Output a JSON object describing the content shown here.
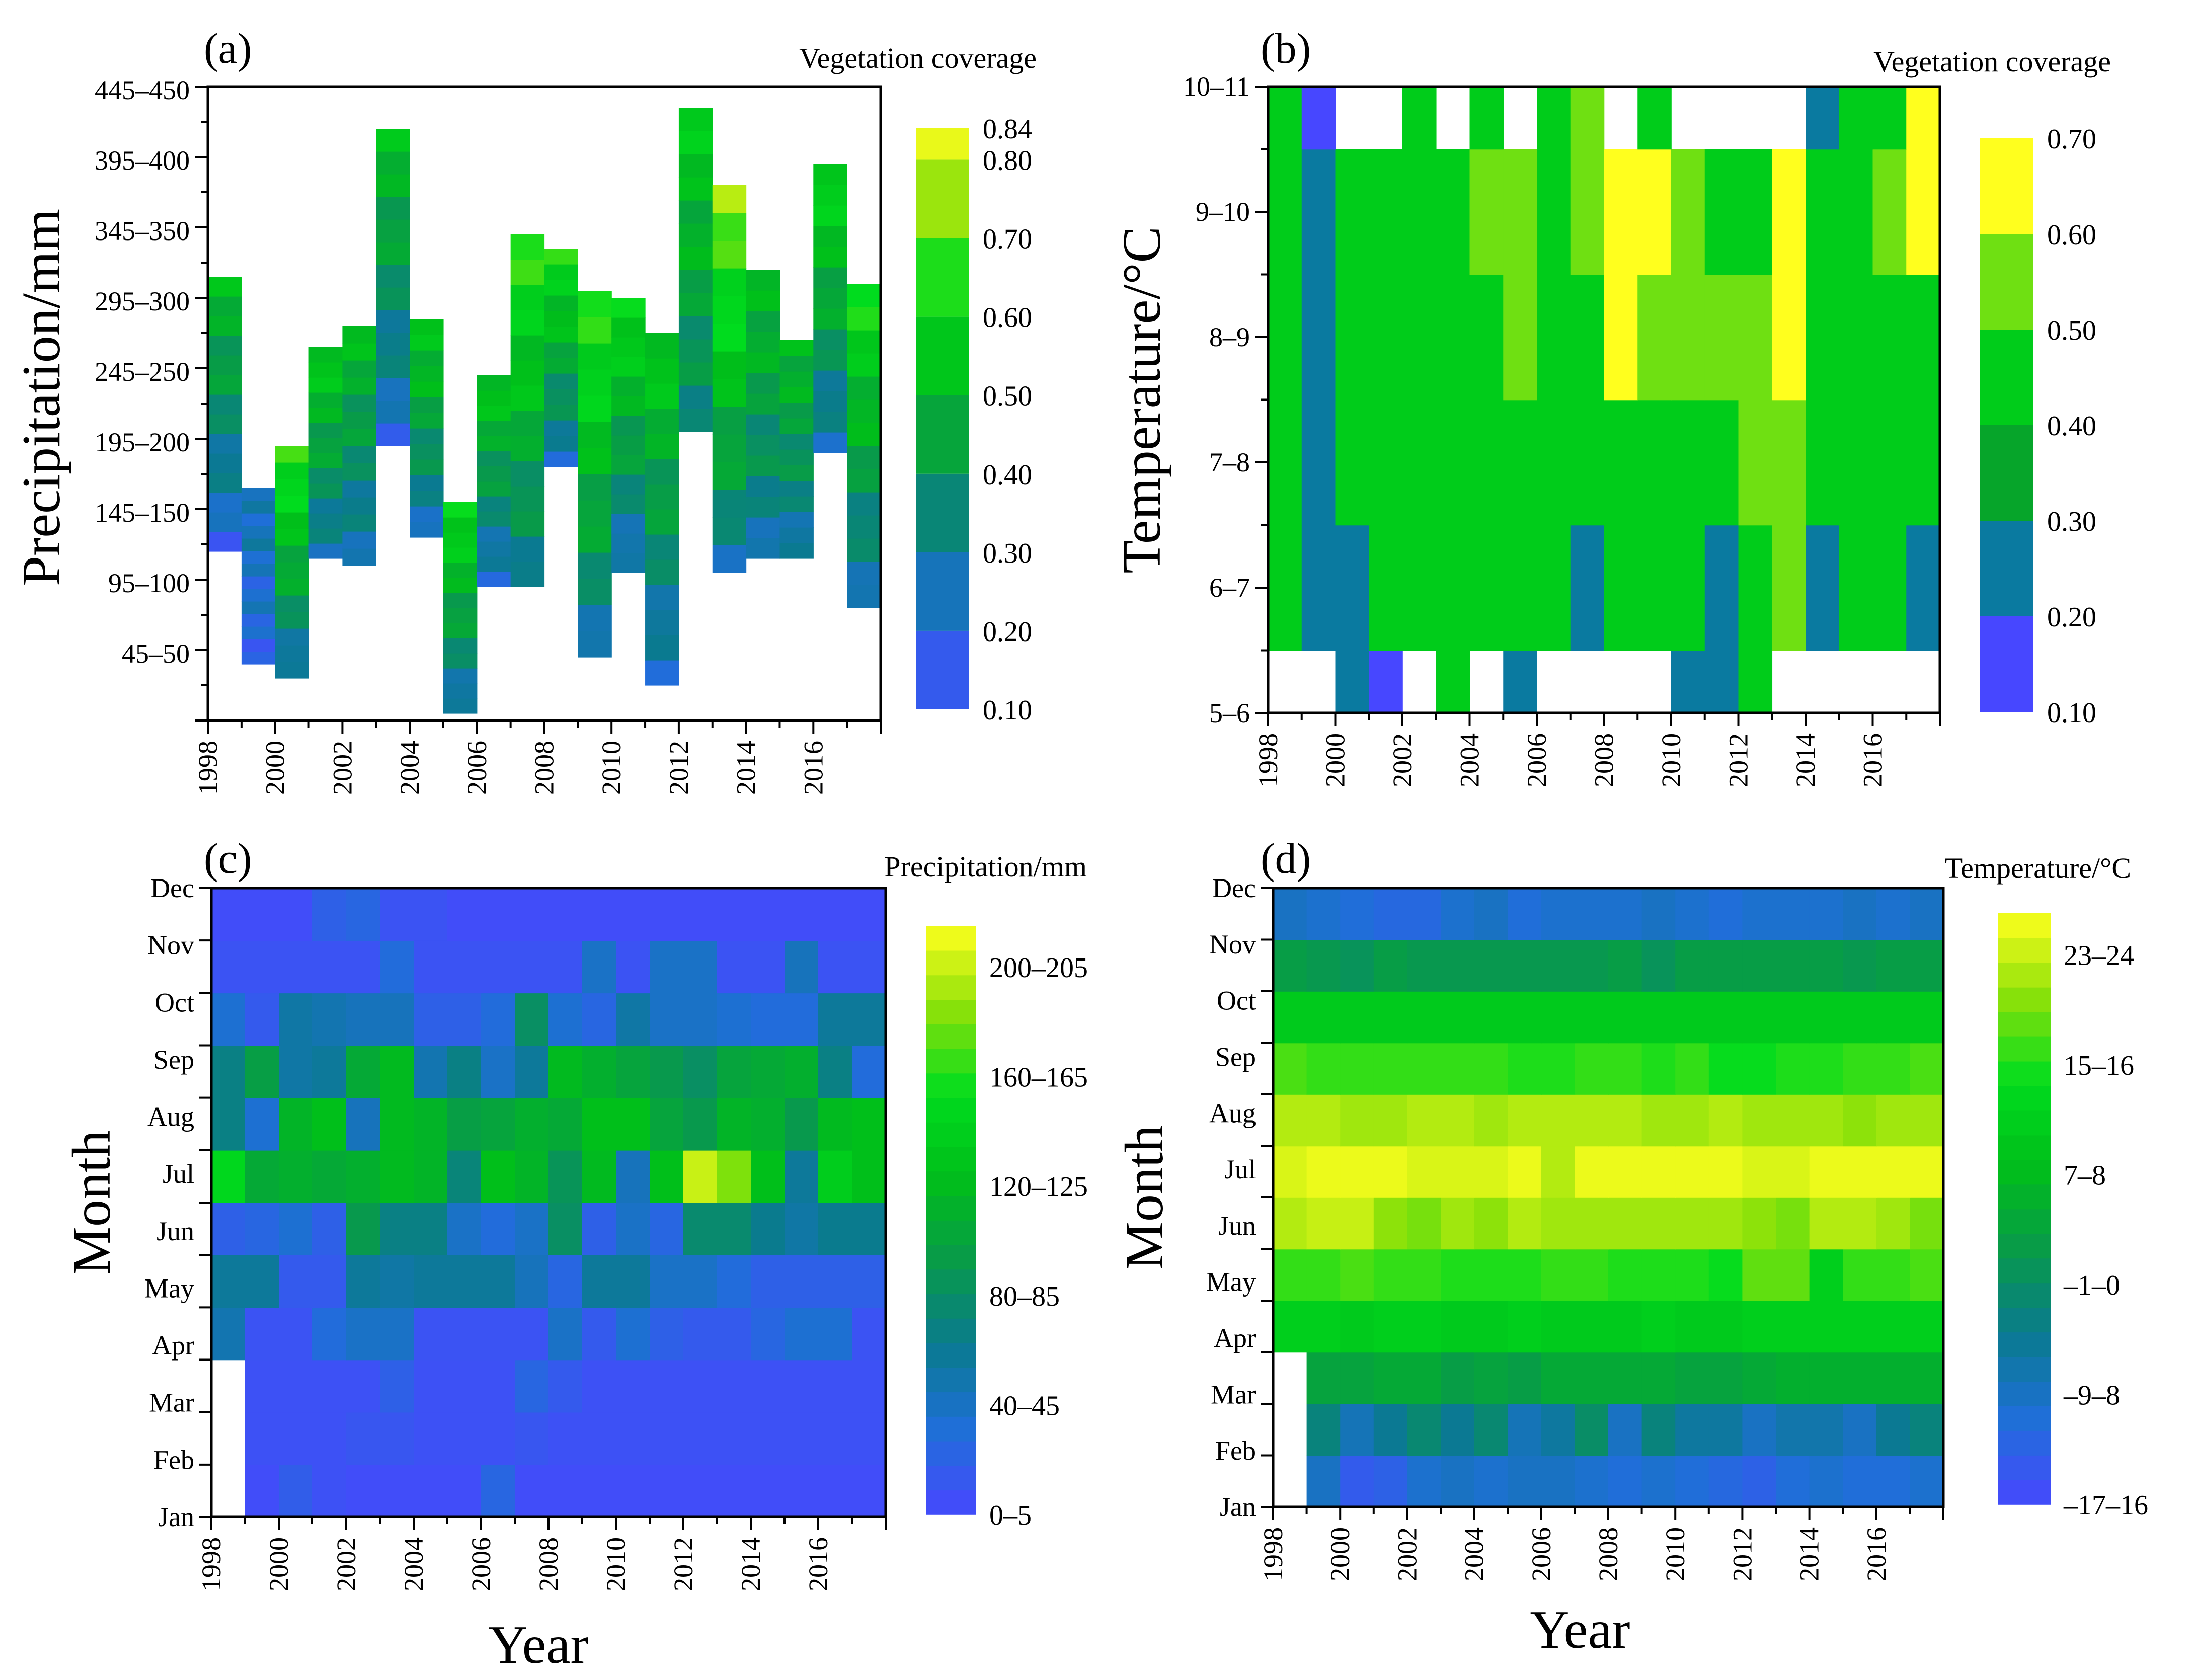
{
  "chart_data": [
    {
      "panel": "(a)",
      "type": "heatmap",
      "xlabel": "",
      "ylabel": "Precipitation/mm",
      "colorbar_title": "Vegetation coverage",
      "colorbar_ticks": [
        "0.10",
        "0.20",
        "0.30",
        "0.40",
        "0.50",
        "0.60",
        "0.70",
        "0.80",
        "0.84"
      ],
      "x_ticks": [
        "1998",
        "2000",
        "2002",
        "2004",
        "2006",
        "2008",
        "2010",
        "2012",
        "2014",
        "2016"
      ],
      "y_ticks": [
        "45–50",
        "95–100",
        "145–150",
        "195–200",
        "245–250",
        "295–300",
        "345–350",
        "395–400",
        "445–450"
      ],
      "years": [
        1998,
        1999,
        2000,
        2001,
        2002,
        2003,
        2004,
        2005,
        2006,
        2007,
        2008,
        2009,
        2010,
        2011,
        2012,
        2013,
        2014,
        2015,
        2016,
        2017
      ],
      "precip_range_mm": [
        [
          120,
          315
        ],
        [
          40,
          165
        ],
        [
          30,
          195
        ],
        [
          115,
          265
        ],
        [
          110,
          280
        ],
        [
          195,
          420
        ],
        [
          130,
          285
        ],
        [
          5,
          155
        ],
        [
          95,
          245
        ],
        [
          95,
          345
        ],
        [
          180,
          335
        ],
        [
          45,
          305
        ],
        [
          105,
          300
        ],
        [
          25,
          275
        ],
        [
          205,
          435
        ],
        [
          105,
          380
        ],
        [
          115,
          320
        ],
        [
          115,
          270
        ],
        [
          190,
          395
        ],
        [
          80,
          310
        ]
      ],
      "coverage_low_end": [
        0.16,
        0.17,
        0.22,
        0.24,
        0.22,
        0.18,
        0.22,
        0.22,
        0.19,
        0.27,
        0.22,
        0.24,
        0.2,
        0.2,
        0.31,
        0.25,
        0.25,
        0.24,
        0.22,
        0.21
      ],
      "coverage_high_end": [
        0.52,
        0.27,
        0.67,
        0.57,
        0.52,
        0.53,
        0.57,
        0.62,
        0.56,
        0.66,
        0.63,
        0.68,
        0.62,
        0.57,
        0.57,
        0.74,
        0.53,
        0.52,
        0.61,
        0.64
      ],
      "colorbar_range": [
        0.1,
        0.84
      ]
    },
    {
      "panel": "(b)",
      "type": "heatmap",
      "xlabel": "",
      "ylabel": "Temperature/°C",
      "colorbar_title": "Vegetation coverage",
      "colorbar_ticks": [
        "0.10",
        "0.20",
        "0.30",
        "0.40",
        "0.50",
        "0.60",
        "0.70"
      ],
      "x_ticks": [
        "1998",
        "2000",
        "2002",
        "2004",
        "2006",
        "2008",
        "2010",
        "2012",
        "2014",
        "2016"
      ],
      "y_ticks": [
        "5–6",
        "6–7",
        "7–8",
        "8–9",
        "9–10",
        "10–11"
      ],
      "years": [
        1998,
        1999,
        2000,
        2001,
        2002,
        2003,
        2004,
        2005,
        2006,
        2007,
        2008,
        2009,
        2010,
        2011,
        2012,
        2013,
        2014,
        2015,
        2016,
        2017
      ],
      "temperature_bins": [
        "5–6",
        "6–7",
        "7–8",
        "8–9",
        "9–10",
        "10–11"
      ],
      "values": [
        [
          null,
          null,
          0.25,
          0.15,
          null,
          0.4,
          null,
          0.25,
          null,
          null,
          null,
          null,
          0.25,
          0.25,
          0.45,
          null,
          null,
          null,
          null,
          null
        ],
        [
          0.45,
          0.25,
          0.25,
          0.4,
          0.4,
          0.4,
          0.4,
          0.4,
          0.4,
          0.25,
          0.4,
          0.45,
          0.4,
          0.25,
          0.45,
          0.55,
          0.25,
          0.4,
          0.4,
          0.25
        ],
        [
          0.45,
          0.25,
          0.4,
          0.4,
          0.4,
          0.45,
          0.4,
          0.4,
          0.4,
          0.4,
          0.45,
          0.45,
          0.45,
          0.45,
          0.55,
          0.55,
          0.4,
          0.4,
          0.45,
          0.4
        ],
        [
          0.45,
          0.25,
          0.45,
          0.4,
          0.45,
          0.45,
          0.45,
          0.55,
          0.45,
          0.45,
          0.66,
          0.55,
          0.55,
          0.55,
          0.55,
          0.66,
          0.45,
          0.45,
          0.45,
          0.45
        ],
        [
          0.45,
          0.25,
          0.45,
          0.4,
          0.45,
          0.4,
          0.55,
          0.55,
          0.45,
          0.55,
          0.66,
          0.66,
          0.55,
          0.45,
          0.4,
          0.66,
          0.45,
          0.45,
          0.55,
          0.66
        ],
        [
          0.45,
          0.15,
          null,
          null,
          0.4,
          null,
          0.4,
          null,
          0.4,
          0.55,
          null,
          0.45,
          null,
          null,
          null,
          null,
          0.25,
          0.4,
          0.4,
          0.66
        ]
      ],
      "colorbar_range": [
        0.1,
        0.7
      ]
    },
    {
      "panel": "(c)",
      "type": "heatmap",
      "xlabel": "Year",
      "ylabel": "Month",
      "colorbar_title": "Precipitation/mm",
      "colorbar_ticks": [
        "0–5",
        "40–45",
        "80–85",
        "120–125",
        "160–165",
        "200–205"
      ],
      "x_ticks": [
        "1998",
        "2000",
        "2002",
        "2004",
        "2006",
        "2008",
        "2010",
        "2012",
        "2014",
        "2016"
      ],
      "y_ticks": [
        "Jan",
        "Feb",
        "Mar",
        "Apr",
        "May",
        "Jun",
        "Jul",
        "Aug",
        "Sep",
        "Oct",
        "Nov",
        "Dec"
      ],
      "years": [
        1998,
        1999,
        2000,
        2001,
        2002,
        2003,
        2004,
        2005,
        2006,
        2007,
        2008,
        2009,
        2010,
        2011,
        2012,
        2013,
        2014,
        2015,
        2016,
        2017
      ],
      "months": [
        "Jan",
        "Feb",
        "Mar",
        "Apr",
        "May",
        "Jun",
        "Jul",
        "Aug",
        "Sep",
        "Oct",
        "Nov",
        "Dec"
      ],
      "values": [
        [
          null,
          5,
          18,
          8,
          5,
          5,
          5,
          5,
          25,
          5,
          5,
          5,
          5,
          5,
          5,
          5,
          5,
          5,
          5,
          5
        ],
        [
          null,
          8,
          8,
          8,
          12,
          12,
          8,
          8,
          8,
          12,
          8,
          8,
          8,
          8,
          8,
          8,
          8,
          8,
          8,
          8
        ],
        [
          null,
          8,
          8,
          8,
          8,
          20,
          8,
          8,
          8,
          25,
          15,
          8,
          8,
          8,
          8,
          8,
          8,
          8,
          8,
          8
        ],
        [
          50,
          10,
          10,
          30,
          40,
          40,
          10,
          10,
          10,
          10,
          40,
          15,
          35,
          20,
          15,
          15,
          25,
          35,
          35,
          10
        ],
        [
          60,
          60,
          15,
          15,
          60,
          55,
          60,
          60,
          60,
          45,
          25,
          60,
          60,
          40,
          40,
          30,
          20,
          20,
          20,
          20
        ],
        [
          20,
          25,
          35,
          20,
          95,
          70,
          70,
          40,
          30,
          40,
          85,
          20,
          40,
          25,
          80,
          80,
          65,
          55,
          65,
          65
        ],
        [
          155,
          110,
          115,
          110,
          115,
          125,
          120,
          75,
          130,
          120,
          90,
          125,
          45,
          130,
          210,
          190,
          130,
          60,
          145,
          130
        ],
        [
          70,
          35,
          120,
          130,
          45,
          125,
          120,
          100,
          105,
          115,
          110,
          130,
          130,
          105,
          95,
          120,
          115,
          95,
          125,
          130
        ],
        [
          70,
          100,
          55,
          60,
          110,
          125,
          50,
          70,
          40,
          60,
          125,
          115,
          105,
          95,
          85,
          105,
          110,
          115,
          70,
          30
        ],
        [
          35,
          15,
          55,
          50,
          45,
          45,
          20,
          20,
          30,
          85,
          35,
          25,
          55,
          40,
          40,
          35,
          30,
          30,
          60,
          60
        ],
        [
          10,
          10,
          10,
          10,
          10,
          30,
          10,
          10,
          10,
          10,
          10,
          40,
          10,
          40,
          40,
          10,
          10,
          45,
          10,
          10
        ],
        [
          5,
          5,
          5,
          20,
          25,
          10,
          10,
          5,
          5,
          5,
          5,
          5,
          5,
          5,
          5,
          5,
          5,
          5,
          5,
          5
        ]
      ],
      "colorbar_range": [
        0,
        225
      ]
    },
    {
      "panel": "(d)",
      "type": "heatmap",
      "xlabel": "Year",
      "ylabel": "Month",
      "colorbar_title": "Temperature/°C",
      "colorbar_ticks": [
        "–17–16",
        "–9–8",
        "–1–0",
        "7–8",
        "15–16",
        "23–24"
      ],
      "x_ticks": [
        "1998",
        "2000",
        "2002",
        "2004",
        "2006",
        "2008",
        "2010",
        "2012",
        "2014",
        "2016"
      ],
      "y_ticks": [
        "Jan",
        "Feb",
        "Mar",
        "Apr",
        "May",
        "Jun",
        "Jul",
        "Aug",
        "Sep",
        "Oct",
        "Nov",
        "Dec"
      ],
      "years": [
        1998,
        1999,
        2000,
        2001,
        2002,
        2003,
        2004,
        2005,
        2006,
        2007,
        2008,
        2009,
        2010,
        2011,
        2012,
        2013,
        2014,
        2015,
        2016,
        2017
      ],
      "months": [
        "Jan",
        "Feb",
        "Mar",
        "Apr",
        "May",
        "Jun",
        "Jul",
        "Aug",
        "Sep",
        "Oct",
        "Nov",
        "Dec"
      ],
      "values": [
        [
          null,
          -9,
          -14,
          -13,
          -10,
          -9,
          -10,
          -9,
          -9,
          -10,
          -11,
          -10,
          -11,
          -12,
          -13,
          -11,
          -10,
          -11,
          -11,
          -10
        ],
        [
          null,
          -3,
          -8,
          -5,
          -2,
          -5,
          -2,
          -8,
          -6,
          -1,
          -9,
          -3,
          -6,
          -6,
          -9,
          -7,
          -7,
          -9,
          -5,
          -3
        ],
        [
          null,
          3,
          3,
          4,
          4,
          2,
          3,
          2,
          4,
          4,
          4,
          4,
          3,
          3,
          4,
          5,
          5,
          5,
          5,
          5
        ],
        [
          11,
          11,
          10,
          11,
          11,
          10,
          10,
          11,
          10,
          10,
          10,
          11,
          10,
          10,
          11,
          11,
          11,
          11,
          11,
          11
        ],
        [
          16,
          16,
          17,
          16,
          16,
          15,
          15,
          15,
          16,
          16,
          15,
          15,
          15,
          14,
          18,
          18,
          11,
          16,
          16,
          17
        ],
        [
          22,
          23,
          23,
          20,
          19,
          21,
          20,
          22,
          21,
          21,
          21,
          21,
          21,
          21,
          20,
          19,
          22,
          22,
          21,
          19
        ],
        [
          24,
          25,
          25,
          25,
          24,
          24,
          24,
          25,
          22,
          25,
          25,
          25,
          25,
          25,
          24,
          24,
          25,
          25,
          25,
          25
        ],
        [
          22,
          22,
          21,
          21,
          22,
          22,
          21,
          22,
          22,
          22,
          22,
          21,
          21,
          22,
          21,
          21,
          21,
          20,
          21,
          21
        ],
        [
          17,
          16,
          16,
          16,
          16,
          16,
          16,
          15,
          15,
          16,
          16,
          15,
          16,
          14,
          14,
          15,
          15,
          16,
          16,
          17
        ],
        [
          10,
          10,
          10,
          10,
          10,
          10,
          10,
          10,
          10,
          10,
          10,
          10,
          10,
          10,
          10,
          10,
          10,
          10,
          10,
          10
        ],
        [
          2,
          1,
          0,
          2,
          1,
          1,
          1,
          1,
          1,
          1,
          2,
          0,
          2,
          2,
          2,
          2,
          2,
          1,
          2,
          2
        ],
        [
          -9,
          -10,
          -11,
          -12,
          -12,
          -10,
          -9,
          -11,
          -10,
          -10,
          -10,
          -9,
          -10,
          -11,
          -10,
          -10,
          -10,
          -9,
          -10,
          -9
        ]
      ],
      "colorbar_range": [
        -17,
        26
      ]
    }
  ]
}
